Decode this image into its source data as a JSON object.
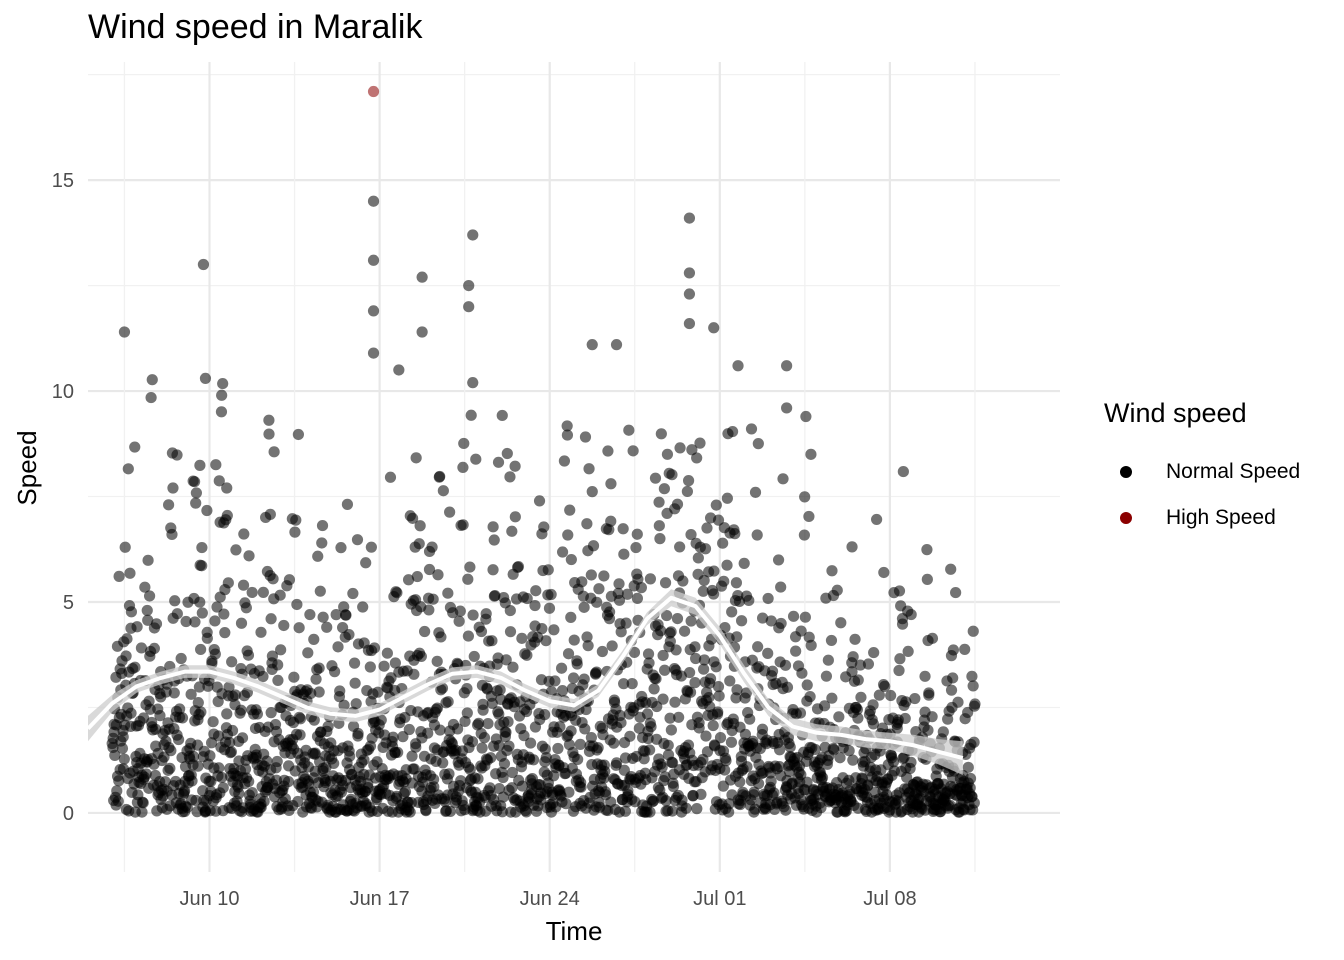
{
  "chart_data": {
    "type": "scatter",
    "title": "Wind speed in Maralik",
    "xlabel": "Time",
    "ylabel": "Speed",
    "x_range": [
      "2024-06-05",
      "2024-07-15"
    ],
    "ylim": [
      -1.4,
      17.8
    ],
    "x_ticks": [
      {
        "date": "2024-06-10",
        "label": "Jun 10"
      },
      {
        "date": "2024-06-17",
        "label": "Jun 17"
      },
      {
        "date": "2024-06-24",
        "label": "Jun 24"
      },
      {
        "date": "2024-07-01",
        "label": "Jul 01"
      },
      {
        "date": "2024-07-08",
        "label": "Jul 08"
      }
    ],
    "y_ticks": [
      0,
      5,
      10,
      15
    ],
    "grid": true,
    "legend": {
      "title": "Wind speed",
      "position": "right",
      "entries": [
        {
          "name": "Normal Speed",
          "color": "#000000"
        },
        {
          "name": "High Speed",
          "color": "#8b0000"
        }
      ]
    },
    "series": [
      {
        "name": "Normal Speed",
        "color": "#000000",
        "point_count_approx": 2300,
        "notable_points": [
          {
            "x": "2024-06-06 12:00",
            "y": 11.4
          },
          {
            "x": "2024-06-09 18:00",
            "y": 13.0
          },
          {
            "x": "2024-06-09 20:00",
            "y": 10.3
          },
          {
            "x": "2024-06-10 12:00",
            "y": 9.9
          },
          {
            "x": "2024-06-16 18:00",
            "y": 14.5
          },
          {
            "x": "2024-06-16 18:00",
            "y": 13.1
          },
          {
            "x": "2024-06-16 18:00",
            "y": 11.9
          },
          {
            "x": "2024-06-16 18:00",
            "y": 10.9
          },
          {
            "x": "2024-06-17 19:00",
            "y": 10.5
          },
          {
            "x": "2024-06-18 18:00",
            "y": 12.7
          },
          {
            "x": "2024-06-18 18:00",
            "y": 11.4
          },
          {
            "x": "2024-06-20 16:00",
            "y": 12.5
          },
          {
            "x": "2024-06-20 16:00",
            "y": 12.0
          },
          {
            "x": "2024-06-20 20:00",
            "y": 13.7
          },
          {
            "x": "2024-06-20 20:00",
            "y": 10.2
          },
          {
            "x": "2024-06-25 18:00",
            "y": 11.1
          },
          {
            "x": "2024-06-26 18:00",
            "y": 11.1
          },
          {
            "x": "2024-06-29 18:00",
            "y": 14.1
          },
          {
            "x": "2024-06-29 18:00",
            "y": 12.8
          },
          {
            "x": "2024-06-29 18:00",
            "y": 12.3
          },
          {
            "x": "2024-06-29 18:00",
            "y": 11.6
          },
          {
            "x": "2024-06-30 18:00",
            "y": 11.5
          },
          {
            "x": "2024-07-01 18:00",
            "y": 10.6
          },
          {
            "x": "2024-07-03 18:00",
            "y": 10.6
          },
          {
            "x": "2024-07-03 18:00",
            "y": 9.6
          },
          {
            "x": "2024-07-04 18:00",
            "y": 8.5
          },
          {
            "x": "2024-07-07 18:00",
            "y": 5.7
          },
          {
            "x": "2024-07-10 14:00",
            "y": 3.2
          }
        ]
      },
      {
        "name": "High Speed",
        "color": "#8b0000",
        "points": [
          {
            "x": "2024-06-16 18:00",
            "y": 17.1
          }
        ]
      }
    ],
    "smooth_trend": {
      "type": "loess",
      "color": "#ffffff",
      "band_color": "#cccccc",
      "points": [
        {
          "x": "2024-06-05 00:00",
          "y": 2.0,
          "lo": 1.7,
          "hi": 2.3
        },
        {
          "x": "2024-06-06 00:00",
          "y": 2.6,
          "lo": 2.4,
          "hi": 2.8
        },
        {
          "x": "2024-06-07 00:00",
          "y": 3.0,
          "lo": 2.85,
          "hi": 3.15
        },
        {
          "x": "2024-06-08 00:00",
          "y": 3.2,
          "lo": 3.05,
          "hi": 3.35
        },
        {
          "x": "2024-06-09 00:00",
          "y": 3.35,
          "lo": 3.2,
          "hi": 3.5
        },
        {
          "x": "2024-06-10 00:00",
          "y": 3.35,
          "lo": 3.2,
          "hi": 3.5
        },
        {
          "x": "2024-06-11 00:00",
          "y": 3.2,
          "lo": 3.05,
          "hi": 3.35
        },
        {
          "x": "2024-06-12 00:00",
          "y": 3.0,
          "lo": 2.85,
          "hi": 3.15
        },
        {
          "x": "2024-06-13 00:00",
          "y": 2.75,
          "lo": 2.6,
          "hi": 2.9
        },
        {
          "x": "2024-06-14 00:00",
          "y": 2.5,
          "lo": 2.35,
          "hi": 2.65
        },
        {
          "x": "2024-06-15 00:00",
          "y": 2.35,
          "lo": 2.2,
          "hi": 2.5
        },
        {
          "x": "2024-06-16 00:00",
          "y": 2.3,
          "lo": 2.15,
          "hi": 2.45
        },
        {
          "x": "2024-06-17 00:00",
          "y": 2.45,
          "lo": 2.3,
          "hi": 2.6
        },
        {
          "x": "2024-06-18 00:00",
          "y": 2.75,
          "lo": 2.6,
          "hi": 2.9
        },
        {
          "x": "2024-06-19 00:00",
          "y": 3.05,
          "lo": 2.9,
          "hi": 3.2
        },
        {
          "x": "2024-06-20 00:00",
          "y": 3.3,
          "lo": 3.15,
          "hi": 3.45
        },
        {
          "x": "2024-06-21 00:00",
          "y": 3.35,
          "lo": 3.2,
          "hi": 3.5
        },
        {
          "x": "2024-06-22 00:00",
          "y": 3.2,
          "lo": 3.05,
          "hi": 3.35
        },
        {
          "x": "2024-06-23 00:00",
          "y": 2.9,
          "lo": 2.75,
          "hi": 3.05
        },
        {
          "x": "2024-06-24 00:00",
          "y": 2.65,
          "lo": 2.5,
          "hi": 2.8
        },
        {
          "x": "2024-06-25 00:00",
          "y": 2.55,
          "lo": 2.4,
          "hi": 2.7
        },
        {
          "x": "2024-06-26 00:00",
          "y": 2.9,
          "lo": 2.75,
          "hi": 3.05
        },
        {
          "x": "2024-06-27 00:00",
          "y": 3.7,
          "lo": 3.55,
          "hi": 3.85
        },
        {
          "x": "2024-06-28 00:00",
          "y": 4.6,
          "lo": 4.45,
          "hi": 4.75
        },
        {
          "x": "2024-06-29 00:00",
          "y": 5.1,
          "lo": 4.9,
          "hi": 5.3
        },
        {
          "x": "2024-06-30 00:00",
          "y": 4.9,
          "lo": 4.7,
          "hi": 5.1
        },
        {
          "x": "2024-07-01 00:00",
          "y": 4.2,
          "lo": 4.0,
          "hi": 4.4
        },
        {
          "x": "2024-07-02 00:00",
          "y": 3.3,
          "lo": 3.1,
          "hi": 3.5
        },
        {
          "x": "2024-07-03 00:00",
          "y": 2.5,
          "lo": 2.3,
          "hi": 2.7
        },
        {
          "x": "2024-07-04 00:00",
          "y": 2.05,
          "lo": 1.85,
          "hi": 2.25
        },
        {
          "x": "2024-07-05 00:00",
          "y": 1.9,
          "lo": 1.7,
          "hi": 2.1
        },
        {
          "x": "2024-07-06 00:00",
          "y": 1.85,
          "lo": 1.65,
          "hi": 2.05
        },
        {
          "x": "2024-07-07 00:00",
          "y": 1.75,
          "lo": 1.55,
          "hi": 1.95
        },
        {
          "x": "2024-07-08 00:00",
          "y": 1.7,
          "lo": 1.5,
          "hi": 1.9
        },
        {
          "x": "2024-07-09 00:00",
          "y": 1.6,
          "lo": 1.35,
          "hi": 1.85
        },
        {
          "x": "2024-07-10 00:00",
          "y": 1.45,
          "lo": 1.15,
          "hi": 1.75
        },
        {
          "x": "2024-07-11 00:00",
          "y": 1.3,
          "lo": 0.9,
          "hi": 1.7
        }
      ]
    }
  }
}
